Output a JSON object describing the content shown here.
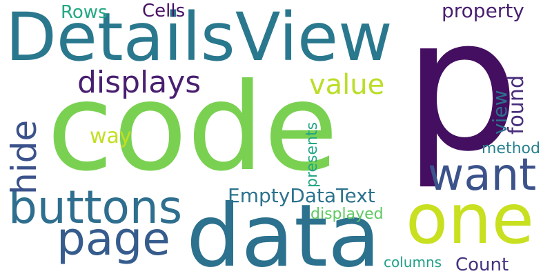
{
  "words": [
    {
      "key": "code",
      "text": "code",
      "color": "#7ad151"
    },
    {
      "key": "p",
      "text": "p",
      "color": "#440f60"
    },
    {
      "key": "detailsview",
      "text": "DetailsView",
      "color": "#2a788e"
    },
    {
      "key": "data",
      "text": "data",
      "color": "#2c718e"
    },
    {
      "key": "one",
      "text": "one",
      "color": "#c8e020"
    },
    {
      "key": "buttons",
      "text": "buttons",
      "color": "#2e6e8e"
    },
    {
      "key": "page",
      "text": "page",
      "color": "#365c8d"
    },
    {
      "key": "want",
      "text": "want",
      "color": "#3b528b"
    },
    {
      "key": "hide",
      "text": "hide",
      "color": "#3b528b"
    },
    {
      "key": "displays",
      "text": "displays",
      "color": "#481f70"
    },
    {
      "key": "value",
      "text": "value",
      "color": "#bade28"
    },
    {
      "key": "emptydatatext",
      "text": "EmptyDataText",
      "color": "#2c728e"
    },
    {
      "key": "property",
      "text": "property",
      "color": "#481f70"
    },
    {
      "key": "rows",
      "text": "Rows",
      "color": "#23a983"
    },
    {
      "key": "cells",
      "text": "Cells",
      "color": "#471365"
    },
    {
      "key": "view",
      "text": "view",
      "color": "#2d708e"
    },
    {
      "key": "found",
      "text": "found",
      "color": "#472d7b"
    },
    {
      "key": "way",
      "text": "way",
      "color": "#c2df23"
    },
    {
      "key": "method",
      "text": "method",
      "color": "#27808e"
    },
    {
      "key": "presents",
      "text": "presents",
      "color": "#22a785"
    },
    {
      "key": "displayed",
      "text": "displayed",
      "color": "#5ec962"
    },
    {
      "key": "count",
      "text": "Count",
      "color": "#46327e"
    },
    {
      "key": "columns",
      "text": "columns",
      "color": "#1fa088"
    }
  ]
}
